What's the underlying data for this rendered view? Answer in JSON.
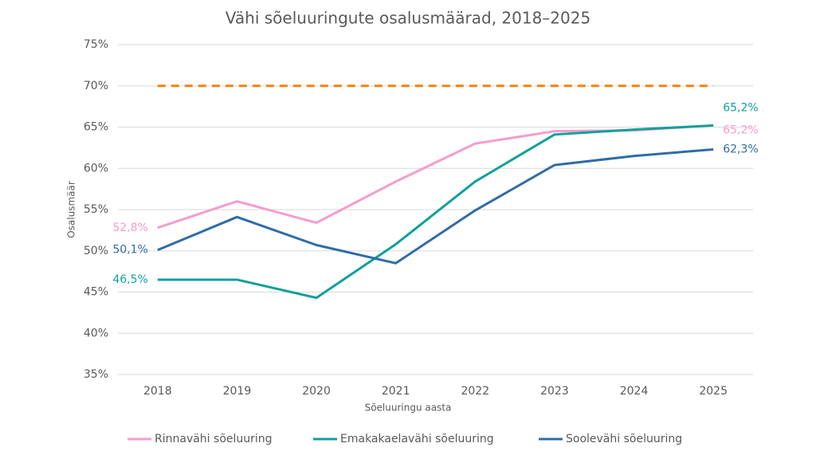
{
  "chart_data": {
    "type": "line",
    "title": "Vähi sõeluuringute osalusmäärad, 2018–2025",
    "x_label": "Sõeluuringu aasta",
    "y_label": "Osalusmäär",
    "categories": [
      "2018",
      "2019",
      "2020",
      "2021",
      "2022",
      "2023",
      "2024",
      "2025"
    ],
    "series": [
      {
        "name": "Rinnavähi sõeluuring",
        "color": "#f79ccb",
        "values": [
          52.8,
          56.0,
          53.4,
          58.4,
          63.0,
          64.5,
          64.6,
          65.2
        ],
        "value_labels": [
          "52,8%",
          null,
          null,
          null,
          null,
          null,
          null,
          "65,2%"
        ]
      },
      {
        "name": "Emakakaelavähi sõeluuring",
        "color": "#12a09a",
        "values": [
          46.5,
          46.5,
          44.3,
          50.8,
          58.4,
          64.1,
          64.7,
          65.2
        ],
        "value_labels": [
          "46,5%",
          null,
          null,
          null,
          null,
          null,
          null,
          "65,2%"
        ]
      },
      {
        "name": "Soolevähi sõeluuring",
        "color": "#2f6ca8",
        "values": [
          50.1,
          54.1,
          50.7,
          48.5,
          54.9,
          60.4,
          61.5,
          62.3
        ],
        "value_labels": [
          "50,1%",
          null,
          null,
          null,
          null,
          null,
          null,
          "62,3%"
        ]
      }
    ],
    "reference_line": {
      "value": 70,
      "color": "#f5820d",
      "dashed": true
    },
    "ylim": [
      35,
      75
    ],
    "yticks": [
      {
        "value": 35,
        "label": "35%"
      },
      {
        "value": 40,
        "label": "40%"
      },
      {
        "value": 45,
        "label": "45%"
      },
      {
        "value": 50,
        "label": "50%"
      },
      {
        "value": 55,
        "label": "55%"
      },
      {
        "value": 60,
        "label": "60%"
      },
      {
        "value": 65,
        "label": "65%"
      },
      {
        "value": 70,
        "label": "70%"
      },
      {
        "value": 75,
        "label": "75%"
      }
    ],
    "grid": true,
    "legend": "bottom"
  }
}
